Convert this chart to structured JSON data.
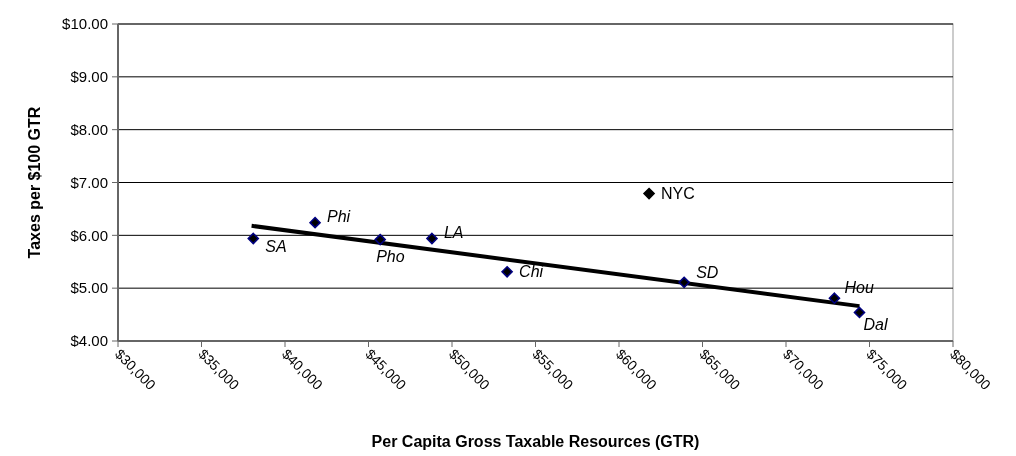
{
  "chart_data": {
    "type": "scatter",
    "xlabel": "Per Capita Gross Taxable Resources (GTR)",
    "ylabel": "Taxes per $100 GTR",
    "xlim": [
      30000,
      80000
    ],
    "ylim": [
      4,
      10
    ],
    "xticks": [
      {
        "value": 30000,
        "label": "$30,000"
      },
      {
        "value": 35000,
        "label": "$35,000"
      },
      {
        "value": 40000,
        "label": "$40,000"
      },
      {
        "value": 45000,
        "label": "$45,000"
      },
      {
        "value": 50000,
        "label": "$50,000"
      },
      {
        "value": 55000,
        "label": "$55,000"
      },
      {
        "value": 60000,
        "label": "$60,000"
      },
      {
        "value": 65000,
        "label": "$65,000"
      },
      {
        "value": 70000,
        "label": "$70,000"
      },
      {
        "value": 75000,
        "label": "$75,000"
      },
      {
        "value": 80000,
        "label": "$80,000"
      }
    ],
    "yticks": [
      {
        "value": 4,
        "label": "$4.00"
      },
      {
        "value": 5,
        "label": "$5.00"
      },
      {
        "value": 6,
        "label": "$6.00"
      },
      {
        "value": 7,
        "label": "$7.00"
      },
      {
        "value": 8,
        "label": "$8.00"
      },
      {
        "value": 9,
        "label": "$9.00"
      },
      {
        "value": 10,
        "label": "$10.00"
      }
    ],
    "grid": "y",
    "marker": "diamond",
    "series": [
      {
        "color": "#000080",
        "x": [
          38100,
          41800,
          45700,
          48800,
          53300,
          63900,
          72900,
          74400
        ],
        "values": [
          5.94,
          6.24,
          5.92,
          5.94,
          5.31,
          5.11,
          4.81,
          4.54
        ],
        "value_labels": [
          "SA",
          "Phi",
          "Pho",
          "LA",
          "Chi",
          "SD",
          "Hou",
          "Dal"
        ]
      },
      {
        "color": "#000000",
        "x": [
          61800
        ],
        "values": [
          6.79
        ],
        "value_labels": [
          "NYC"
        ]
      },
      {
        "type": "line",
        "color": "#000000",
        "marker": "none",
        "x": [
          38000,
          74400
        ],
        "values": [
          6.18,
          4.66
        ]
      }
    ]
  }
}
